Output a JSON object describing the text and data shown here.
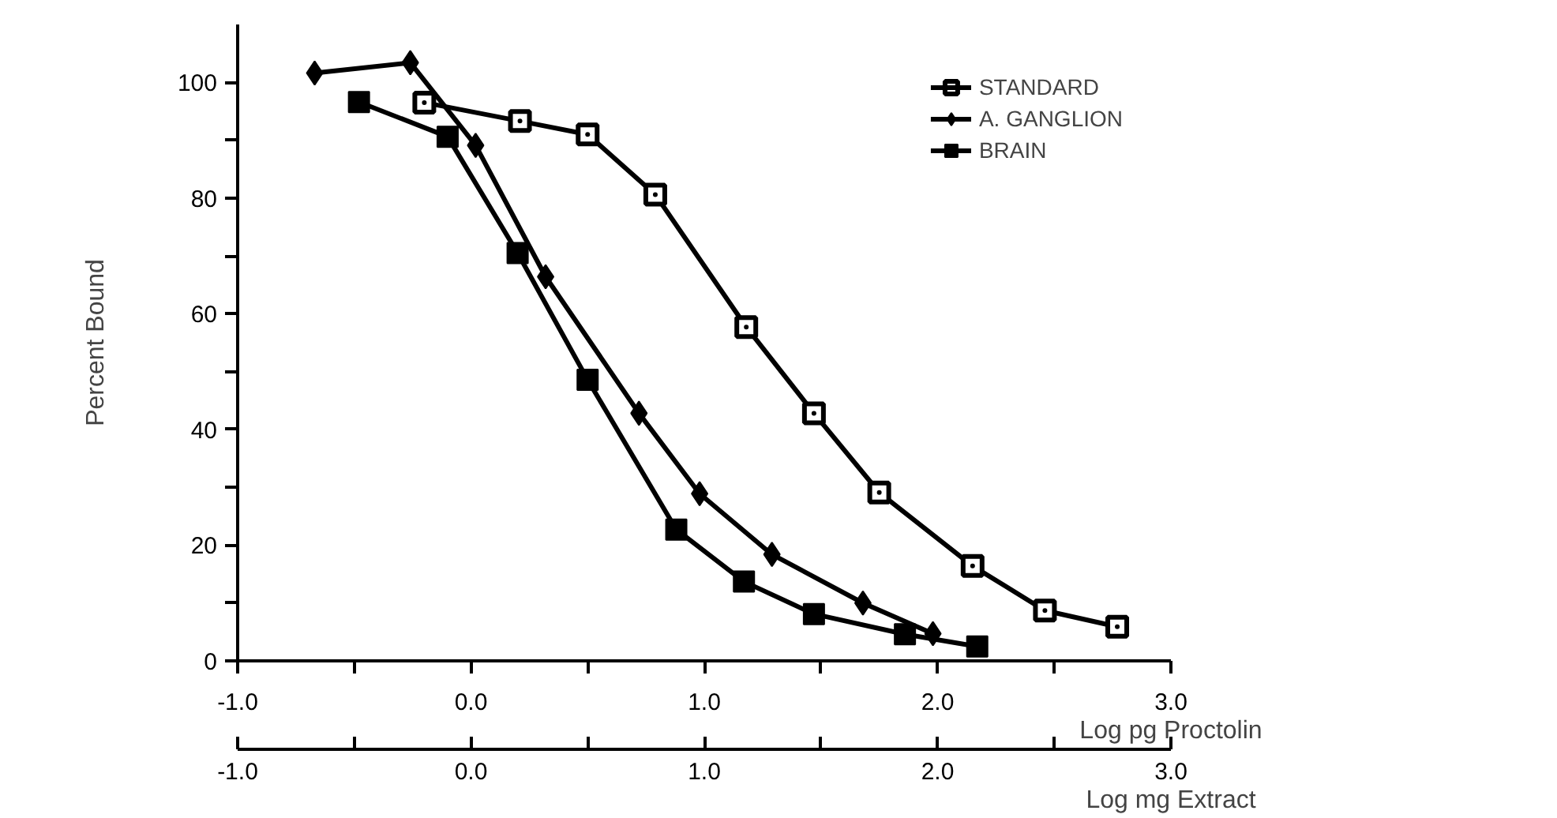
{
  "chart_data": {
    "type": "line",
    "xlabel": "Log pg Proctolin",
    "ylabel": "Percent Bound",
    "x2label": "Log mg Extract",
    "xlim": [
      -1.0,
      3.0
    ],
    "xticks": [
      {
        "value": -1.0,
        "label": "-1.0"
      },
      {
        "value": -0.5,
        "label": null
      },
      {
        "value": 0.0,
        "label": "0.0"
      },
      {
        "value": 0.5,
        "label": null
      },
      {
        "value": 1.0,
        "label": "1.0"
      },
      {
        "value": 1.5,
        "label": null
      },
      {
        "value": 2.0,
        "label": "2.0"
      },
      {
        "value": 2.5,
        "label": null
      },
      {
        "value": 3.0,
        "label": "3.0"
      }
    ],
    "x2lim": [
      -1.0,
      3.0
    ],
    "x2ticks": [
      {
        "value": -1.0,
        "label": "-1.0"
      },
      {
        "value": -0.5,
        "label": null
      },
      {
        "value": 0.0,
        "label": "0.0"
      },
      {
        "value": 0.5,
        "label": null
      },
      {
        "value": 1.0,
        "label": "1.0"
      },
      {
        "value": 1.5,
        "label": null
      },
      {
        "value": 2.0,
        "label": "2.0"
      },
      {
        "value": 2.5,
        "label": null
      },
      {
        "value": 3.0,
        "label": "3.0"
      }
    ],
    "ylim": [
      0,
      110
    ],
    "yticks": [
      0,
      {
        "value": 10,
        "label": null
      },
      20,
      {
        "value": 30,
        "label": null
      },
      40,
      {
        "value": 50,
        "label": null
      },
      60,
      {
        "value": 70,
        "label": null
      },
      80,
      {
        "value": 90,
        "label": null
      },
      100
    ],
    "grid": false,
    "legend": "top right",
    "line_style": "solid",
    "series": [
      {
        "name": "STANDARD",
        "color": "#000000",
        "marker": "square",
        "x": [
          -0.2,
          0.21,
          0.5,
          0.79,
          1.18,
          1.47,
          1.75,
          2.15,
          2.46,
          2.77
        ],
        "values": [
          96.5,
          93.3,
          91.0,
          80.6,
          57.7,
          42.8,
          29.1,
          16.4,
          8.7,
          5.9
        ]
      },
      {
        "name": "A. GANGLION",
        "color": "#000000",
        "marker": "diamond",
        "x": [
          -0.67,
          -0.26,
          0.02,
          0.32,
          0.72,
          0.98,
          1.29,
          1.68,
          1.98
        ],
        "values": [
          101.6,
          103.4,
          89.1,
          66.4,
          42.8,
          28.9,
          18.4,
          10.0,
          4.7
        ]
      },
      {
        "name": "BRAIN",
        "color": "#000000",
        "marker": "square",
        "x": [
          -0.48,
          -0.1,
          0.2,
          0.5,
          0.88,
          1.17,
          1.47,
          1.86,
          2.17
        ],
        "values": [
          96.6,
          90.6,
          70.5,
          48.6,
          22.7,
          13.7,
          8.1,
          4.6,
          2.5
        ]
      }
    ]
  }
}
